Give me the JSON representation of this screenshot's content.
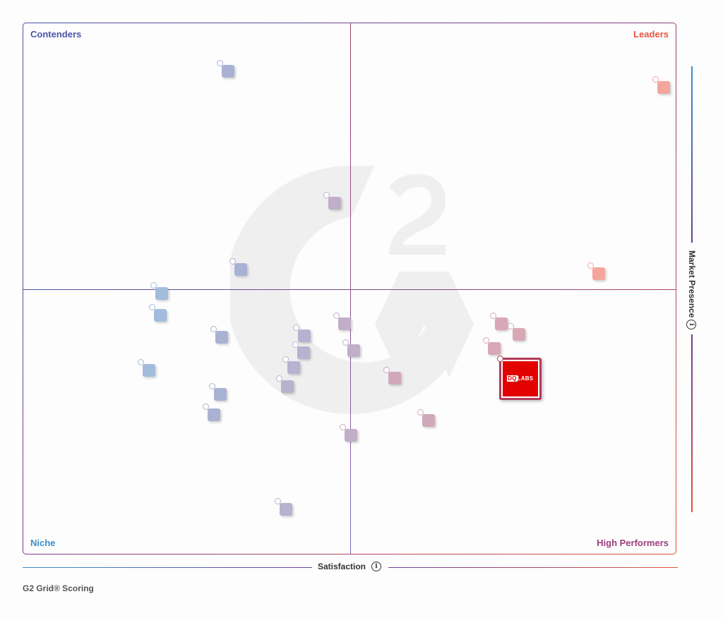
{
  "chart_data": {
    "type": "scatter",
    "title": "G2 Grid",
    "xlabel": "Satisfaction",
    "ylabel": "Market Presence",
    "quadrants": {
      "top_left": "Contenders",
      "top_right": "Leaders",
      "bottom_left": "Niche",
      "bottom_right": "High Performers"
    },
    "grid": false,
    "axis_ticks": "none (relative positions only)",
    "x_range": [
      0,
      100
    ],
    "y_range": [
      0,
      100
    ],
    "points": [
      {
        "x": 31.3,
        "y": 91.0,
        "quadrant": "Contenders",
        "color": "#aab2d4"
      },
      {
        "x": 98.0,
        "y": 87.9,
        "quadrant": "Leaders",
        "color": "#f4a59c"
      },
      {
        "x": 47.6,
        "y": 66.2,
        "quadrant": "Contenders",
        "color": "#c1aec8"
      },
      {
        "x": 33.3,
        "y": 53.7,
        "quadrant": "Contenders",
        "color": "#aab2d4"
      },
      {
        "x": 88.0,
        "y": 52.9,
        "quadrant": "Leaders",
        "color": "#f4a59c"
      },
      {
        "x": 21.2,
        "y": 49.2,
        "quadrant": "Niche",
        "color": "#a3bcdc"
      },
      {
        "x": 20.9,
        "y": 45.1,
        "quadrant": "Niche",
        "color": "#a3bcdc"
      },
      {
        "x": 30.3,
        "y": 41.0,
        "quadrant": "Niche",
        "color": "#aab2d4"
      },
      {
        "x": 19.2,
        "y": 34.7,
        "quadrant": "Niche",
        "color": "#a3bcdc"
      },
      {
        "x": 30.1,
        "y": 30.3,
        "quadrant": "Niche",
        "color": "#aab2d4"
      },
      {
        "x": 29.2,
        "y": 26.4,
        "quadrant": "Niche",
        "color": "#aab2d4"
      },
      {
        "x": 43.0,
        "y": 41.3,
        "quadrant": "Niche",
        "color": "#b6b2cf"
      },
      {
        "x": 42.9,
        "y": 38.1,
        "quadrant": "Niche",
        "color": "#b6b2cf"
      },
      {
        "x": 41.4,
        "y": 35.3,
        "quadrant": "Niche",
        "color": "#b6b2cf"
      },
      {
        "x": 40.4,
        "y": 31.7,
        "quadrant": "Niche",
        "color": "#b6b2cf"
      },
      {
        "x": 49.1,
        "y": 43.5,
        "quadrant": "Niche",
        "color": "#c1aec8"
      },
      {
        "x": 50.5,
        "y": 38.5,
        "quadrant": "High Performers",
        "color": "#c1aec8"
      },
      {
        "x": 56.8,
        "y": 33.3,
        "quadrant": "High Performers",
        "color": "#cfa8ba"
      },
      {
        "x": 62.0,
        "y": 25.3,
        "quadrant": "High Performers",
        "color": "#cfa8ba"
      },
      {
        "x": 50.1,
        "y": 22.5,
        "quadrant": "High Performers",
        "color": "#c1aec8"
      },
      {
        "x": 40.2,
        "y": 8.6,
        "quadrant": "Niche",
        "color": "#b6b2cf"
      },
      {
        "x": 73.1,
        "y": 43.5,
        "quadrant": "High Performers",
        "color": "#d8a8b6"
      },
      {
        "x": 75.8,
        "y": 41.5,
        "quadrant": "High Performers",
        "color": "#d8a8b6"
      },
      {
        "x": 72.0,
        "y": 38.9,
        "quadrant": "High Performers",
        "color": "#d8a8b6"
      },
      {
        "x": 76.0,
        "y": 33.2,
        "quadrant": "High Performers",
        "color": "#e20000",
        "label": "DQLABS",
        "featured": true
      }
    ]
  },
  "grid": {
    "quadrants": {
      "contenders": "Contenders",
      "leaders": "Leaders",
      "niche": "Niche",
      "high_performers": "High Performers"
    },
    "featured_product": {
      "logo_part1": "DQ",
      "logo_part2": "LABS"
    },
    "colors": {
      "contenders": "#4a54a8",
      "leaders": "#e8553e",
      "niche": "#3a8fc9",
      "high_performers": "#9a3f7c",
      "featured_fill": "#e20000",
      "featured_border": "#b23a5a"
    }
  },
  "axes": {
    "x_label": "Satisfaction",
    "y_label": "Market Presence",
    "info_glyph": "i"
  },
  "footer": {
    "scoring": "G2 Grid® Scoring"
  }
}
